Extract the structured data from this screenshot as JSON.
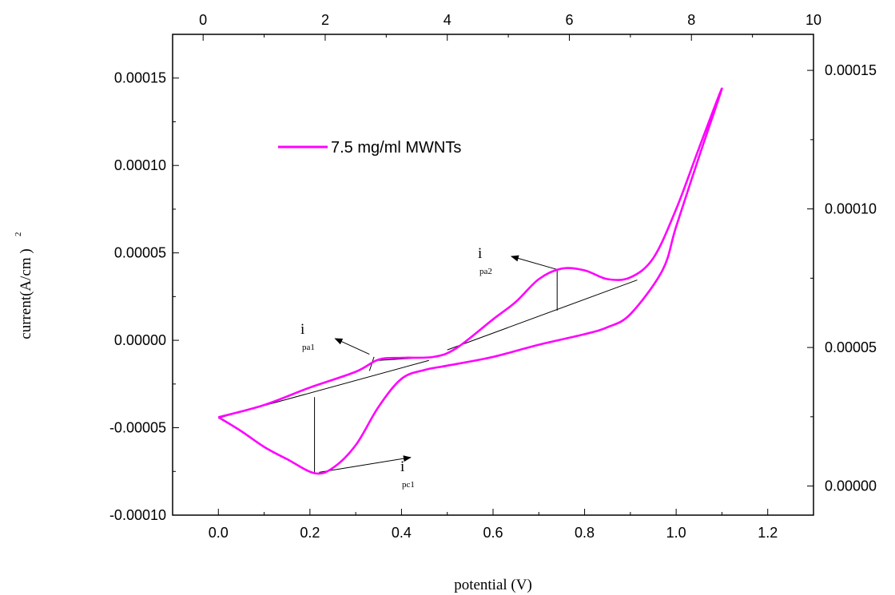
{
  "chart_data": {
    "type": "line",
    "title": "",
    "xlabel": "potential (V)",
    "ylabel": "current(A/cm )",
    "ylabel_superscript": "2",
    "xlim": [
      -0.1,
      1.3
    ],
    "ylim": [
      -0.0001,
      0.000175
    ],
    "x_ticks": [
      "0.0",
      "0.2",
      "0.4",
      "0.6",
      "0.8",
      "1.0",
      "1.2"
    ],
    "y_ticks": [
      "-0.00010",
      "-0.00005",
      "0.00000",
      "0.00005",
      "0.00010",
      "0.00015"
    ],
    "top_axis": {
      "lim": [
        -0.5,
        10
      ],
      "ticks": [
        "0",
        "2",
        "4",
        "6",
        "8",
        "10"
      ]
    },
    "right_axis": {
      "lim": [
        -1.05e-05,
        0.000163
      ],
      "ticks": [
        "0.00000",
        "0.00005",
        "0.00010",
        "0.00015"
      ]
    },
    "grid": false,
    "legend_position": "top-left",
    "series": [
      {
        "name": "7.5 mg/ml MWNTs",
        "color": "#ff00ff",
        "forward": [
          [
            0.0,
            -4.4e-05
          ],
          [
            0.1,
            -3.7e-05
          ],
          [
            0.2,
            -2.7e-05
          ],
          [
            0.3,
            -1.8e-05
          ],
          [
            0.35,
            -1.1e-05
          ],
          [
            0.4,
            -1e-05
          ],
          [
            0.47,
            -9.5e-06
          ],
          [
            0.52,
            -4.5e-06
          ],
          [
            0.6,
            1.2e-05
          ],
          [
            0.65,
            2.2e-05
          ],
          [
            0.7,
            3.5e-05
          ],
          [
            0.75,
            4.1e-05
          ],
          [
            0.8,
            4e-05
          ],
          [
            0.85,
            3.5e-05
          ],
          [
            0.9,
            3.6e-05
          ],
          [
            0.95,
            4.7e-05
          ],
          [
            1.0,
            7.5e-05
          ],
          [
            1.05,
            0.00011
          ],
          [
            1.1,
            0.000144
          ]
        ],
        "reverse": [
          [
            1.1,
            0.000144
          ],
          [
            1.05,
            0.000105
          ],
          [
            1.0,
            6.5e-05
          ],
          [
            0.97,
            4e-05
          ],
          [
            0.9,
            1.5e-05
          ],
          [
            0.85,
            7.5e-06
          ],
          [
            0.8,
            3.5e-06
          ],
          [
            0.7,
            -2.5e-06
          ],
          [
            0.6,
            -9.5e-06
          ],
          [
            0.5,
            -1.45e-05
          ],
          [
            0.45,
            -1.7e-05
          ],
          [
            0.4,
            -2.2e-05
          ],
          [
            0.35,
            -3.8e-05
          ],
          [
            0.3,
            -6e-05
          ],
          [
            0.25,
            -7.3e-05
          ],
          [
            0.21,
            -7.6e-05
          ],
          [
            0.15,
            -6.8e-05
          ],
          [
            0.1,
            -6.1e-05
          ],
          [
            0.05,
            -5.2e-05
          ],
          [
            0.0,
            -4.4e-05
          ]
        ]
      }
    ],
    "annotations": [
      {
        "label": "i",
        "sub": "pa1"
      },
      {
        "label": "i",
        "sub": "pa2"
      },
      {
        "label": "i",
        "sub": "pc1"
      }
    ]
  }
}
